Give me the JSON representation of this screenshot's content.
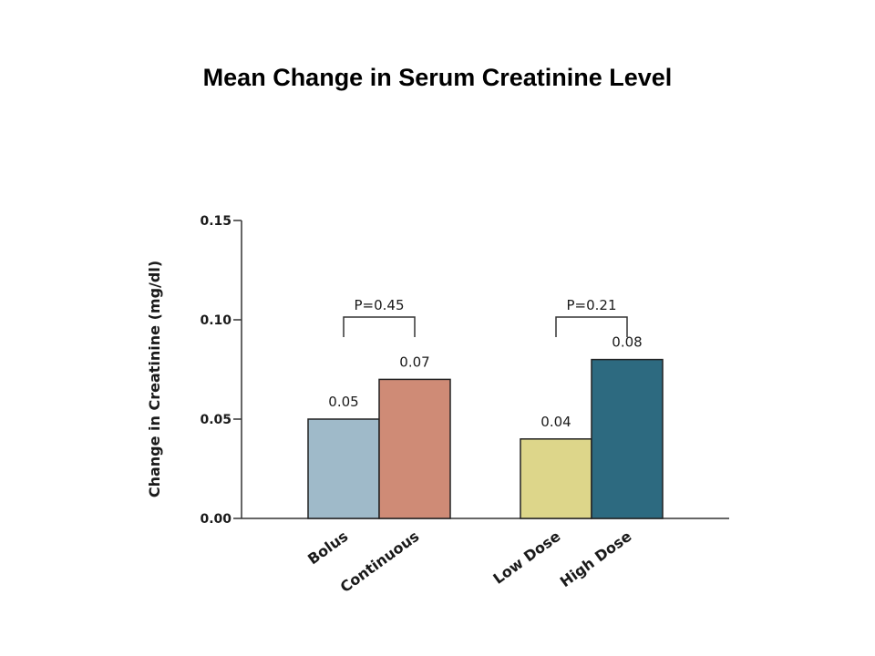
{
  "slide": {
    "title": "Mean Change in Serum Creatinine Level"
  },
  "chart_data": {
    "type": "bar",
    "title": "Mean Change in Serum Creatinine Level",
    "xlabel": "",
    "ylabel": "Change in Creatinine (mg/dl)",
    "ylim": [
      0,
      0.15
    ],
    "yticks": [
      "0.00",
      "0.05",
      "0.10",
      "0.15"
    ],
    "grid": false,
    "groups": [
      {
        "comparison": "P=0.45",
        "bars": [
          {
            "category": "Bolus",
            "value": 0.05,
            "label": "0.05",
            "color": "#9fbac9"
          },
          {
            "category": "Continuous",
            "value": 0.07,
            "label": "0.07",
            "color": "#cf8b76"
          }
        ]
      },
      {
        "comparison": "P=0.21",
        "bars": [
          {
            "category": "Low Dose",
            "value": 0.04,
            "label": "0.04",
            "color": "#ddd68a"
          },
          {
            "category": "High Dose",
            "value": 0.08,
            "label": "0.08",
            "color": "#2d6a80"
          }
        ]
      }
    ]
  }
}
